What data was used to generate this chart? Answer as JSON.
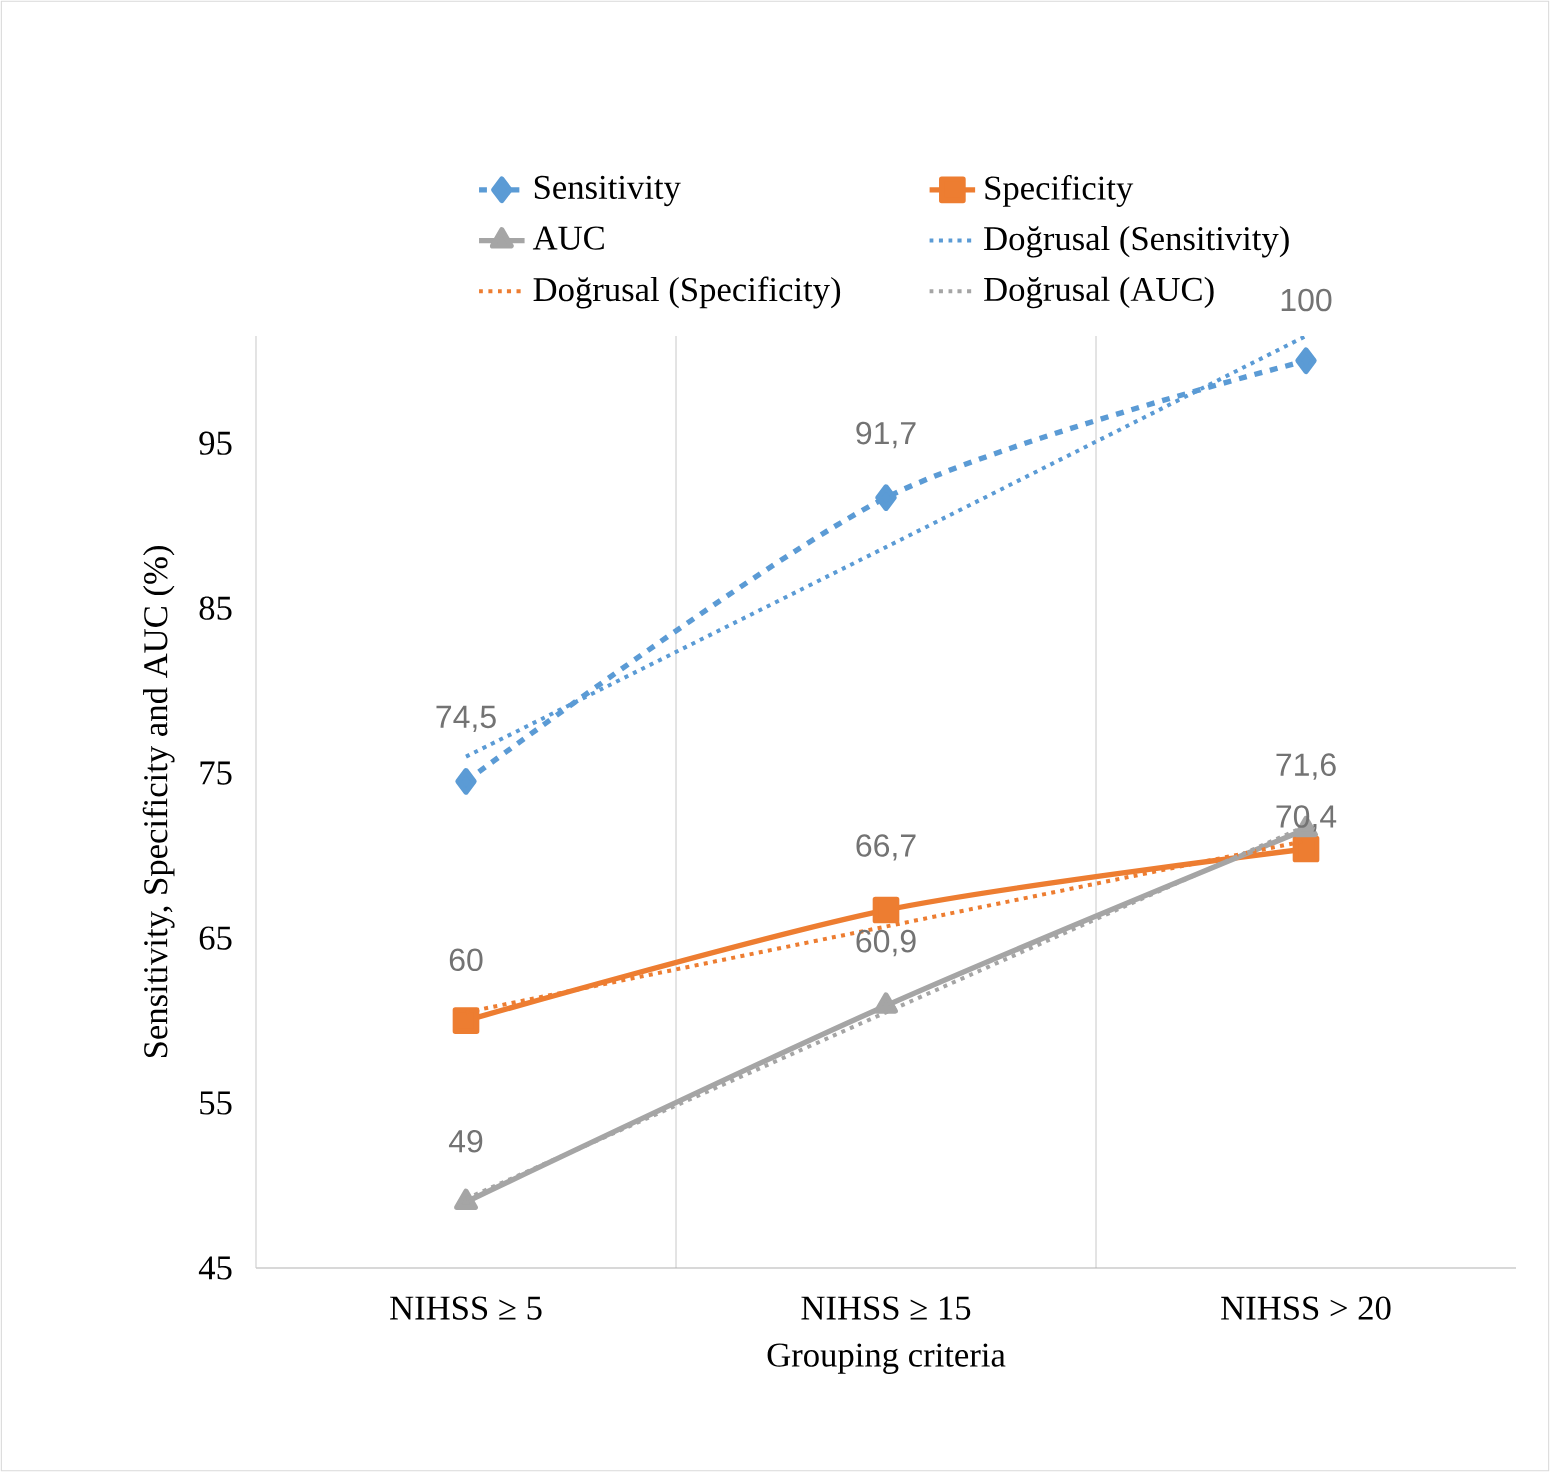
{
  "chart_data": {
    "type": "line",
    "xlabel": "Grouping criteria",
    "ylabel": "Sensitivity, Specificity and AUC (%)",
    "categories": [
      "NIHSS ≥ 5",
      "NIHSS ≥ 15",
      "NIHSS > 20"
    ],
    "ylim": [
      45,
      101.5
    ],
    "yticks": [
      45,
      55,
      65,
      75,
      85,
      95
    ],
    "grid": "x",
    "legend": "top",
    "series": [
      {
        "name": "Sensitivity",
        "color": "#5b9bd5",
        "marker": "diamond",
        "line_style": "dashed",
        "values": [
          74.5,
          91.7,
          100
        ],
        "value_labels": [
          "74,5",
          "91,7",
          "100"
        ]
      },
      {
        "name": "Specificity",
        "color": "#ed7d31",
        "marker": "square",
        "line_style": "solid",
        "values": [
          60,
          66.7,
          70.4
        ],
        "value_labels": [
          "60",
          "66,7",
          "70,4"
        ]
      },
      {
        "name": "AUC",
        "color": "#a5a5a5",
        "marker": "triangle",
        "line_style": "solid",
        "values": [
          49,
          60.9,
          71.6
        ],
        "value_labels": [
          "49",
          "60,9",
          "71,6"
        ]
      },
      {
        "name": "Doğrusal (Sensitivity)",
        "color": "#5b9bd5",
        "marker": "none",
        "line_style": "dotted",
        "values": [
          76,
          88.7,
          101.5
        ]
      },
      {
        "name": "Doğrusal (Specificity)",
        "color": "#ed7d31",
        "marker": "none",
        "line_style": "dotted",
        "values": [
          60.5,
          65.7,
          70.9
        ]
      },
      {
        "name": "Doğrusal (AUC)",
        "color": "#a5a5a5",
        "marker": "none",
        "line_style": "dotted",
        "values": [
          49.2,
          60.5,
          71.8
        ]
      }
    ]
  }
}
